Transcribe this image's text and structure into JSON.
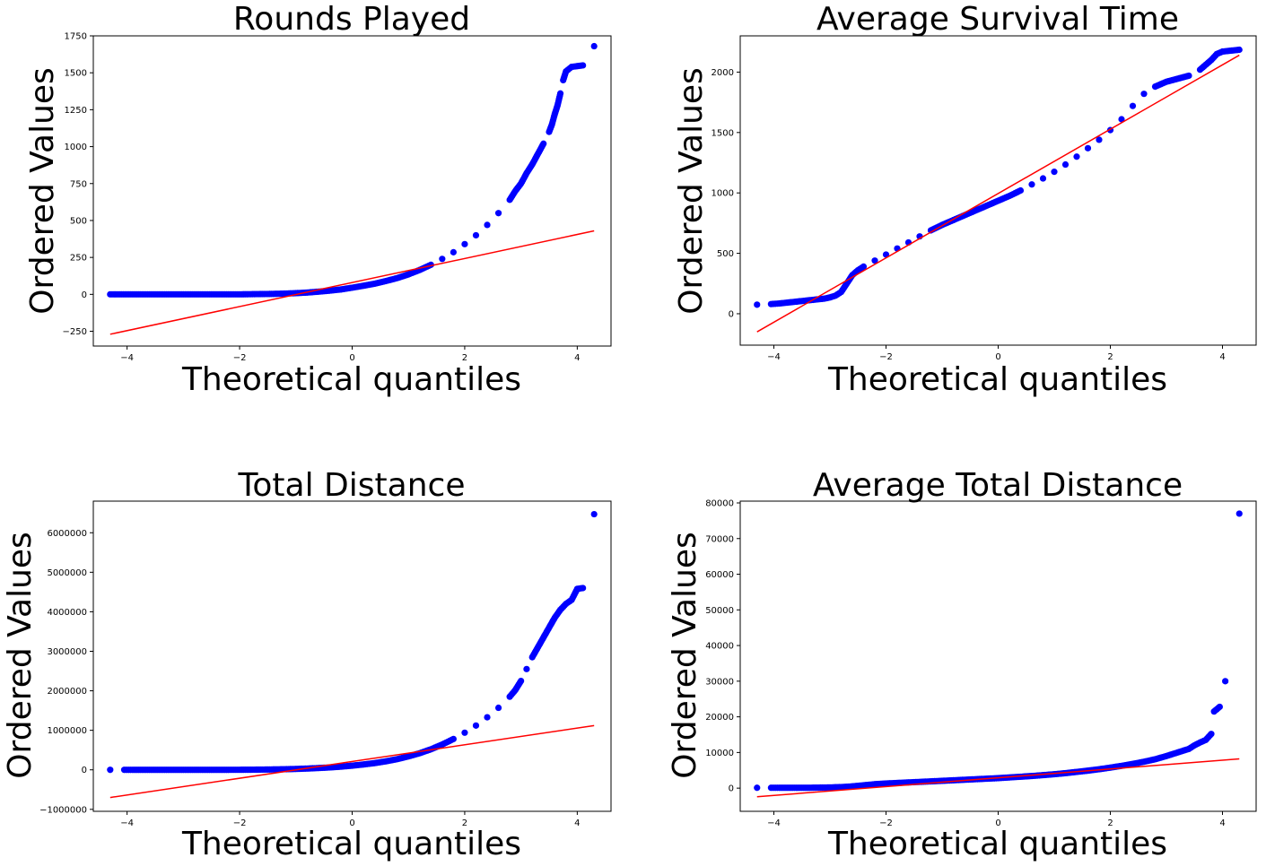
{
  "colors": {
    "points": "#0000ff",
    "fit_line": "#ff0000",
    "axes": "#000000",
    "background": "#ffffff"
  },
  "chart_data": [
    {
      "type": "scatter",
      "title": "Rounds Played",
      "xlabel": "Theoretical quantiles",
      "ylabel": "Ordered Values",
      "xlim": [
        -4.6,
        4.6
      ],
      "ylim": [
        -350,
        1750
      ],
      "xticks": [
        -4,
        -2,
        0,
        2,
        4
      ],
      "xtick_labels": [
        "−4",
        "−2",
        "0",
        "2",
        "4"
      ],
      "yticks": [
        -250,
        0,
        250,
        500,
        750,
        1000,
        1250,
        1500,
        1750
      ],
      "ytick_labels": [
        "−250",
        "0",
        "250",
        "500",
        "750",
        "1000",
        "1250",
        "1500",
        "1750"
      ],
      "grid": false,
      "fit_line": {
        "x": [
          -4.3,
          4.3
        ],
        "y": [
          -270,
          430
        ]
      },
      "points": {
        "x": [
          -4.3,
          -4.1,
          -4.0,
          -3.9,
          -3.8,
          -3.7,
          -3.6,
          -3.5,
          -3.4,
          -3.3,
          -3.2,
          -3.0,
          -2.8,
          -2.6,
          -2.4,
          -2.2,
          -2.0,
          -1.8,
          -1.6,
          -1.4,
          -1.2,
          -1.0,
          -0.8,
          -0.6,
          -0.4,
          -0.2,
          0.0,
          0.2,
          0.4,
          0.6,
          0.8,
          1.0,
          1.2,
          1.4,
          1.6,
          1.8,
          2.0,
          2.2,
          2.4,
          2.6,
          2.8,
          2.9,
          3.0,
          3.1,
          3.2,
          3.3,
          3.4,
          3.5,
          3.55,
          3.6,
          3.65,
          3.7,
          3.75,
          3.8,
          3.9,
          4.0,
          4.1,
          4.3
        ],
        "y": [
          0,
          0,
          0,
          0,
          0,
          0,
          0,
          0,
          0,
          0,
          0,
          0,
          0,
          0,
          0,
          0,
          0,
          1,
          2,
          3,
          5,
          8,
          12,
          18,
          25,
          33,
          45,
          58,
          72,
          90,
          110,
          135,
          165,
          200,
          240,
          285,
          340,
          400,
          470,
          550,
          640,
          700,
          750,
          820,
          880,
          950,
          1020,
          1100,
          1150,
          1220,
          1280,
          1360,
          1450,
          1510,
          1540,
          1545,
          1550,
          1680
        ]
      }
    },
    {
      "type": "scatter",
      "title": "Average Survival Time",
      "xlabel": "Theoretical quantiles",
      "ylabel": "Ordered Values",
      "xlim": [
        -4.6,
        4.6
      ],
      "ylim": [
        -260,
        2300
      ],
      "xticks": [
        -4,
        -2,
        0,
        2,
        4
      ],
      "xtick_labels": [
        "−4",
        "−2",
        "0",
        "2",
        "4"
      ],
      "yticks": [
        0,
        500,
        1000,
        1500,
        2000
      ],
      "ytick_labels": [
        "0",
        "500",
        "1000",
        "1500",
        "2000"
      ],
      "grid": false,
      "fit_line": {
        "x": [
          -4.3,
          4.3
        ],
        "y": [
          -150,
          2140
        ]
      },
      "points": {
        "x": [
          -4.3,
          -4.05,
          -3.9,
          -3.8,
          -3.7,
          -3.6,
          -3.5,
          -3.4,
          -3.3,
          -3.2,
          -3.1,
          -3.0,
          -2.9,
          -2.8,
          -2.7,
          -2.6,
          -2.5,
          -2.4,
          -2.2,
          -2.0,
          -1.8,
          -1.6,
          -1.4,
          -1.2,
          -1.0,
          -0.8,
          -0.6,
          -0.4,
          -0.2,
          0.0,
          0.2,
          0.4,
          0.6,
          0.8,
          1.0,
          1.2,
          1.4,
          1.6,
          1.8,
          2.0,
          2.2,
          2.4,
          2.6,
          2.8,
          3.0,
          3.2,
          3.4,
          3.6,
          3.7,
          3.8,
          3.9,
          4.0,
          4.1,
          4.3
        ],
        "y": [
          75,
          80,
          85,
          90,
          95,
          100,
          105,
          110,
          115,
          120,
          125,
          135,
          150,
          180,
          250,
          320,
          360,
          390,
          440,
          490,
          540,
          590,
          640,
          690,
          735,
          775,
          815,
          855,
          895,
          935,
          975,
          1020,
          1070,
          1120,
          1175,
          1235,
          1300,
          1370,
          1440,
          1520,
          1610,
          1720,
          1820,
          1880,
          1920,
          1945,
          1970,
          2020,
          2060,
          2100,
          2150,
          2170,
          2175,
          2185
        ]
      }
    },
    {
      "type": "scatter",
      "title": "Total Distance",
      "xlabel": "Theoretical quantiles",
      "ylabel": "Ordered Values",
      "xlim": [
        -4.6,
        4.6
      ],
      "ylim": [
        -1050000,
        6800000
      ],
      "xticks": [
        -4,
        -2,
        0,
        2,
        4
      ],
      "xtick_labels": [
        "−4",
        "−2",
        "0",
        "2",
        "4"
      ],
      "yticks": [
        -1000000,
        0,
        1000000,
        2000000,
        3000000,
        4000000,
        5000000,
        6000000
      ],
      "ytick_labels": [
        "−1000000",
        "0",
        "1000000",
        "2000000",
        "3000000",
        "4000000",
        "5000000",
        "6000000"
      ],
      "grid": false,
      "fit_line": {
        "x": [
          -4.3,
          4.3
        ],
        "y": [
          -700000,
          1120000
        ]
      },
      "points": {
        "x": [
          -4.3,
          -4.05,
          -3.9,
          -3.8,
          -3.7,
          -3.6,
          -3.5,
          -3.4,
          -3.3,
          -3.2,
          -3.0,
          -2.8,
          -2.6,
          -2.4,
          -2.2,
          -2.0,
          -1.8,
          -1.6,
          -1.4,
          -1.2,
          -1.0,
          -0.8,
          -0.6,
          -0.4,
          -0.2,
          0.0,
          0.2,
          0.4,
          0.6,
          0.8,
          1.0,
          1.2,
          1.4,
          1.6,
          1.8,
          2.0,
          2.2,
          2.4,
          2.6,
          2.8,
          2.9,
          3.0,
          3.1,
          3.2,
          3.3,
          3.4,
          3.5,
          3.6,
          3.7,
          3.8,
          3.9,
          4.0,
          4.1,
          4.3
        ],
        "y": [
          0,
          0,
          0,
          0,
          0,
          0,
          0,
          0,
          0,
          0,
          0,
          0,
          0,
          0,
          0,
          1000,
          3000,
          6000,
          10000,
          15000,
          22000,
          32000,
          45000,
          60000,
          80000,
          105000,
          135000,
          170000,
          215000,
          270000,
          340000,
          420000,
          520000,
          640000,
          780000,
          940000,
          1120000,
          1330000,
          1570000,
          1850000,
          2020000,
          2250000,
          2550000,
          2850000,
          3100000,
          3350000,
          3600000,
          3850000,
          4050000,
          4200000,
          4300000,
          4580000,
          4600000,
          6470000
        ]
      }
    },
    {
      "type": "scatter",
      "title": "Average Total Distance",
      "xlabel": "Theoretical quantiles",
      "ylabel": "Ordered Values",
      "xlim": [
        -4.6,
        4.6
      ],
      "ylim": [
        -6500,
        80500
      ],
      "xticks": [
        -4,
        -2,
        0,
        2,
        4
      ],
      "xtick_labels": [
        "−4",
        "−2",
        "0",
        "2",
        "4"
      ],
      "yticks": [
        0,
        10000,
        20000,
        30000,
        40000,
        50000,
        60000,
        70000,
        80000
      ],
      "ytick_labels": [
        "0",
        "10000",
        "20000",
        "30000",
        "40000",
        "50000",
        "60000",
        "70000",
        "80000"
      ],
      "grid": false,
      "fit_line": {
        "x": [
          -4.3,
          4.3
        ],
        "y": [
          -2400,
          8200
        ]
      },
      "points": {
        "x": [
          -4.3,
          -4.05,
          -3.9,
          -3.8,
          -3.7,
          -3.6,
          -3.5,
          -3.4,
          -3.2,
          -3.0,
          -2.8,
          -2.6,
          -2.4,
          -2.2,
          -2.0,
          -1.8,
          -1.6,
          -1.4,
          -1.2,
          -1.0,
          -0.8,
          -0.6,
          -0.4,
          -0.2,
          0.0,
          0.2,
          0.4,
          0.6,
          0.8,
          1.0,
          1.2,
          1.4,
          1.6,
          1.8,
          2.0,
          2.2,
          2.4,
          2.6,
          2.8,
          3.0,
          3.2,
          3.4,
          3.5,
          3.6,
          3.7,
          3.8,
          3.85,
          3.95,
          4.05,
          4.3
        ],
        "y": [
          100,
          100,
          100,
          100,
          100,
          100,
          100,
          100,
          150,
          200,
          300,
          500,
          800,
          1100,
          1300,
          1450,
          1600,
          1750,
          1900,
          2050,
          2200,
          2350,
          2500,
          2650,
          2800,
          3000,
          3200,
          3400,
          3650,
          3900,
          4200,
          4550,
          4900,
          5300,
          5750,
          6250,
          6800,
          7400,
          8100,
          9000,
          10000,
          11000,
          12000,
          12800,
          13500,
          15200,
          21500,
          22800,
          30000,
          77000
        ]
      }
    }
  ]
}
